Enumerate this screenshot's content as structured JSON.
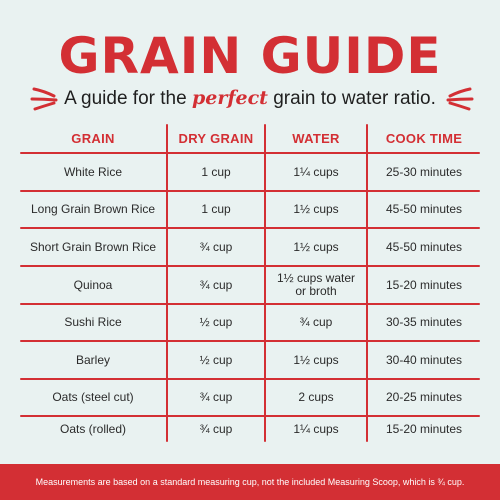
{
  "title": "GRAIN GUIDE",
  "subtitle": {
    "before": "A guide for the ",
    "emphasis": "perfect",
    "after": " grain to water ratio."
  },
  "colors": {
    "accent": "#d32f34",
    "background": "#e9f2f1",
    "text": "#2a2a2a"
  },
  "icons": {
    "left": "sparkle-lines-icon",
    "right": "sparkle-lines-icon"
  },
  "table": {
    "headers": [
      "GRAIN",
      "DRY GRAIN",
      "WATER",
      "COOK TIME"
    ],
    "rows": [
      [
        "White Rice",
        "1 cup",
        "1¼ cups",
        "25-30 minutes"
      ],
      [
        "Long Grain Brown Rice",
        "1 cup",
        "1½ cups",
        "45-50 minutes"
      ],
      [
        "Short Grain Brown Rice",
        "¾ cup",
        "1½ cups",
        "45-50 minutes"
      ],
      [
        "Quinoa",
        "¾ cup",
        "1½ cups water or broth",
        "15-20 minutes"
      ],
      [
        "Sushi Rice",
        "½ cup",
        "¾ cup",
        "30-35 minutes"
      ],
      [
        "Barley",
        "½ cup",
        "1½ cups",
        "30-40 minutes"
      ],
      [
        "Oats (steel cut)",
        "¾ cup",
        "2 cups",
        "20-25 minutes"
      ],
      [
        "Oats (rolled)",
        "¾ cup",
        "1¼ cups",
        "15-20 minutes"
      ]
    ]
  },
  "footer": "Measurements are based on a standard measuring cup, not the included Measuring Scoop, which is ¾ cup."
}
